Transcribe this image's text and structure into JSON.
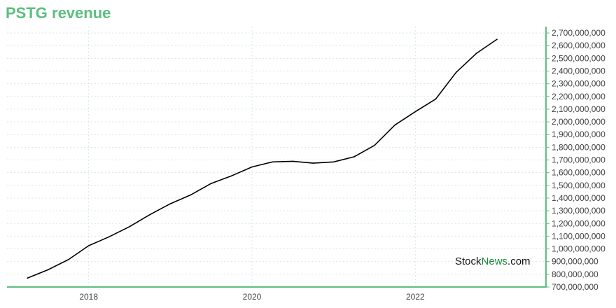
{
  "title": "PSTG revenue",
  "watermark": {
    "part1": "Stock",
    "part2": "News",
    "part3": ".com"
  },
  "colors": {
    "accent": "#5cbf7f",
    "line": "#000000",
    "grid": "#d7e8dc"
  },
  "chart_data": {
    "type": "line",
    "title": "PSTG revenue",
    "xlabel": "",
    "ylabel": "",
    "xlim": [
      2017.0,
      2023.6
    ],
    "ylim": [
      700000000,
      2750000000
    ],
    "x_ticks": [
      2018,
      2020,
      2022
    ],
    "x_tick_labels": [
      "2018",
      "2020",
      "2022"
    ],
    "y_ticks": [
      700000000,
      800000000,
      900000000,
      1000000000,
      1100000000,
      1200000000,
      1300000000,
      1400000000,
      1500000000,
      1600000000,
      1700000000,
      1800000000,
      1900000000,
      2000000000,
      2100000000,
      2200000000,
      2300000000,
      2400000000,
      2500000000,
      2600000000,
      2700000000
    ],
    "y_tick_labels": [
      "700,000,000",
      "800,000,000",
      "900,000,000",
      "1,000,000,000",
      "1,100,000,000",
      "1,200,000,000",
      "1,300,000,000",
      "1,400,000,000",
      "1,500,000,000",
      "1,600,000,000",
      "1,700,000,000",
      "1,800,000,000",
      "1,900,000,000",
      "2,000,000,000",
      "2,100,000,000",
      "2,200,000,000",
      "2,300,000,000",
      "2,400,000,000",
      "2,500,000,000",
      "2,600,000,000",
      "2,700,000,000"
    ],
    "grid": true,
    "y_axis_side": "right",
    "series": [
      {
        "x": [
          2017.25,
          2017.5,
          2017.75,
          2018.0,
          2018.25,
          2018.5,
          2018.75,
          2019.0,
          2019.25,
          2019.5,
          2019.75,
          2020.0,
          2020.25,
          2020.5,
          2020.75,
          2021.0,
          2021.25,
          2021.5,
          2021.75,
          2022.0,
          2022.25,
          2022.5,
          2022.75,
          2023.0
        ],
        "values": [
          770000000,
          835000000,
          915000000,
          1025000000,
          1095000000,
          1175000000,
          1270000000,
          1355000000,
          1425000000,
          1515000000,
          1575000000,
          1645000000,
          1685000000,
          1690000000,
          1675000000,
          1685000000,
          1725000000,
          1815000000,
          1975000000,
          2080000000,
          2180000000,
          2390000000,
          2540000000,
          2650000000
        ]
      }
    ]
  }
}
